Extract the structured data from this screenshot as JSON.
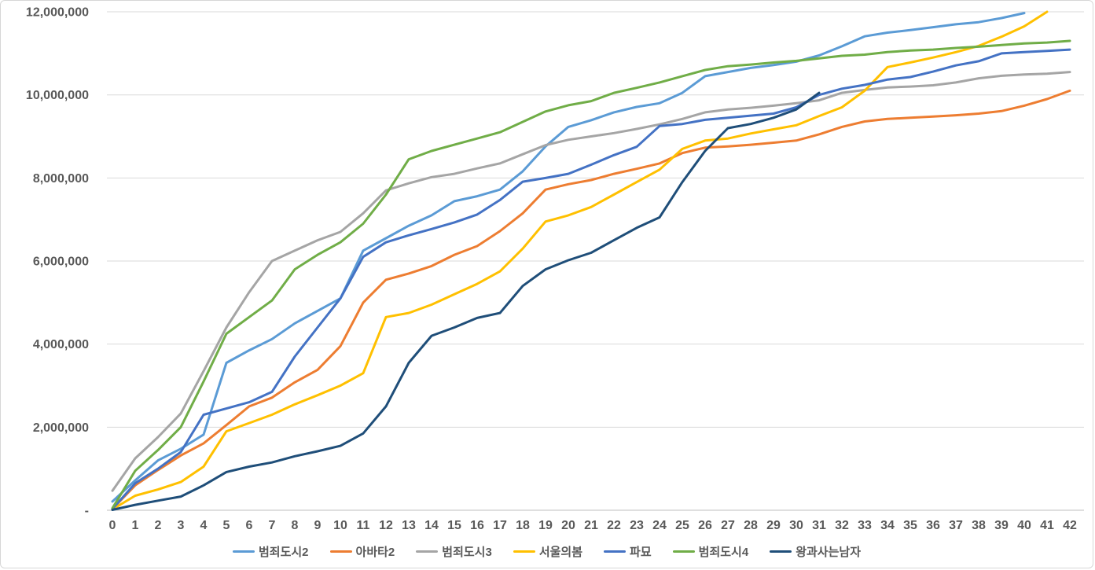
{
  "chart_data": {
    "type": "line",
    "title": "",
    "xlabel": "",
    "ylabel": "",
    "unit": "cumulative admissions, values stored in millions",
    "grid": true,
    "legend_position": "bottom",
    "ylim_millions": [
      0,
      12.27
    ],
    "x_axis": {
      "tick_labels": [
        "0",
        "1",
        "2",
        "3",
        "4",
        "5",
        "6",
        "7",
        "8",
        "9",
        "10",
        "11",
        "12",
        "13",
        "14",
        "15",
        "16",
        "17",
        "18",
        "19",
        "20",
        "21",
        "22",
        "23",
        "24",
        "25",
        "26",
        "27",
        "28",
        "29",
        "30",
        "31",
        "32",
        "33",
        "34",
        "35",
        "36",
        "37",
        "38",
        "39",
        "40",
        "41",
        "42"
      ]
    },
    "y_axis": {
      "tick_labels": [
        "12,000,000",
        "10,000,000",
        "8,000,000",
        "6,000,000",
        "4,000,000",
        "2,000,000",
        "-"
      ],
      "tick_values_millions": [
        12,
        10,
        8,
        6,
        4,
        2,
        0
      ]
    },
    "series": [
      {
        "name": "범죄도시2",
        "color": "#5B9BD5",
        "values_millions": [
          0.21,
          0.72,
          1.2,
          1.48,
          1.82,
          3.55,
          3.85,
          4.12,
          4.5,
          4.8,
          5.1,
          6.25,
          6.55,
          6.85,
          7.1,
          7.44,
          7.56,
          7.72,
          8.16,
          8.76,
          9.23,
          9.39,
          9.58,
          9.71,
          9.8,
          10.05,
          10.45,
          10.55,
          10.65,
          10.72,
          10.8,
          10.95,
          11.17,
          11.41,
          11.5,
          11.56,
          11.63,
          11.7,
          11.75,
          11.85,
          11.97,
          null,
          null
        ]
      },
      {
        "name": "아바타2",
        "color": "#ED7D31",
        "values_millions": [
          0.03,
          0.6,
          0.97,
          1.32,
          1.61,
          2.05,
          2.5,
          2.71,
          3.08,
          3.38,
          3.95,
          5.0,
          5.55,
          5.7,
          5.88,
          6.15,
          6.36,
          6.72,
          7.15,
          7.72,
          7.85,
          7.95,
          8.1,
          8.22,
          8.35,
          8.6,
          8.73,
          8.76,
          8.8,
          8.85,
          8.9,
          9.05,
          9.23,
          9.36,
          9.42,
          9.45,
          9.48,
          9.51,
          9.55,
          9.61,
          9.74,
          9.9,
          10.1
        ]
      },
      {
        "name": "범죄도시3",
        "color": "#A5A5A5",
        "values_millions": [
          0.47,
          1.25,
          1.76,
          2.33,
          3.35,
          4.4,
          5.25,
          6.0,
          6.25,
          6.5,
          6.7,
          7.15,
          7.7,
          7.87,
          8.02,
          8.1,
          8.23,
          8.35,
          8.57,
          8.79,
          8.92,
          9.0,
          9.08,
          9.18,
          9.29,
          9.42,
          9.58,
          9.65,
          9.69,
          9.74,
          9.8,
          9.87,
          10.05,
          10.12,
          10.18,
          10.2,
          10.23,
          10.3,
          10.4,
          10.46,
          10.49,
          10.51,
          10.55
        ]
      },
      {
        "name": "서울의봄",
        "color": "#FFC000",
        "values_millions": [
          0.02,
          0.35,
          0.5,
          0.68,
          1.05,
          1.9,
          2.1,
          2.3,
          2.55,
          2.77,
          3.0,
          3.3,
          4.65,
          4.75,
          4.95,
          5.2,
          5.45,
          5.75,
          6.3,
          6.95,
          7.1,
          7.3,
          7.6,
          7.9,
          8.2,
          8.7,
          8.9,
          8.95,
          9.07,
          9.17,
          9.27,
          9.49,
          9.7,
          10.1,
          10.67,
          10.78,
          10.9,
          11.03,
          11.18,
          11.4,
          11.65,
          12.0,
          null
        ]
      },
      {
        "name": "파묘",
        "color": "#4472C4",
        "values_millions": [
          0.03,
          0.65,
          1.0,
          1.4,
          2.3,
          2.45,
          2.6,
          2.85,
          3.7,
          4.4,
          5.1,
          6.1,
          6.45,
          6.62,
          6.77,
          6.93,
          7.12,
          7.47,
          7.91,
          8.0,
          8.1,
          8.32,
          8.55,
          8.75,
          9.25,
          9.3,
          9.4,
          9.45,
          9.5,
          9.55,
          9.7,
          10.0,
          10.15,
          10.24,
          10.37,
          10.43,
          10.56,
          10.71,
          10.81,
          11.0,
          11.03,
          11.06,
          11.09
        ]
      },
      {
        "name": "범죄도시4",
        "color": "#70AD47",
        "values_millions": [
          0.05,
          0.95,
          1.45,
          2.0,
          3.1,
          4.25,
          4.65,
          5.05,
          5.8,
          6.15,
          6.45,
          6.9,
          7.6,
          8.45,
          8.65,
          8.8,
          8.95,
          9.1,
          9.35,
          9.6,
          9.75,
          9.85,
          10.05,
          10.17,
          10.3,
          10.45,
          10.6,
          10.69,
          10.73,
          10.78,
          10.82,
          10.88,
          10.94,
          10.97,
          11.03,
          11.07,
          11.09,
          11.13,
          11.16,
          11.2,
          11.24,
          11.26,
          11.3
        ]
      },
      {
        "name": "왕과사는남자",
        "color": "#1F4E79",
        "values_millions": [
          0.01,
          0.13,
          0.23,
          0.33,
          0.6,
          0.92,
          1.05,
          1.15,
          1.3,
          1.42,
          1.55,
          1.85,
          2.5,
          3.55,
          4.2,
          4.4,
          4.63,
          4.75,
          5.4,
          5.8,
          6.02,
          6.2,
          6.5,
          6.8,
          7.05,
          7.9,
          8.65,
          9.2,
          9.3,
          9.45,
          9.65,
          10.05,
          null,
          null,
          null,
          null,
          null,
          null,
          null,
          null,
          null,
          null,
          null
        ]
      }
    ]
  }
}
